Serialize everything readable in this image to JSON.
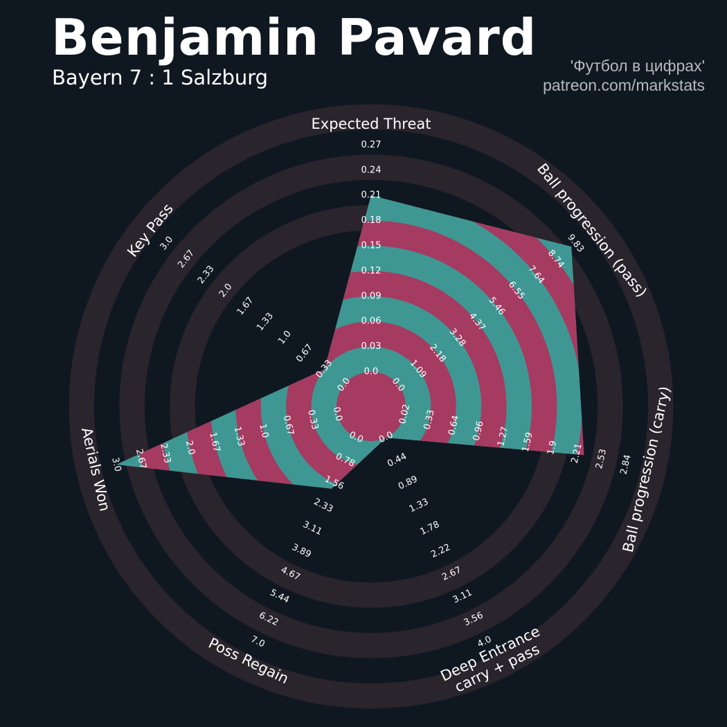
{
  "header": {
    "title": "Benjamin Pavard",
    "subtitle": "Bayern 7 : 1 Salzburg",
    "credit_line1": "'Футбол в цифрах'",
    "credit_line2": "patreon.com/markstats"
  },
  "colors": {
    "background": "#0f1821",
    "ring_band": "#2a242c",
    "fill_teal": "#3f9793",
    "fill_magenta": "#a53b61",
    "text": "#ffffff",
    "credit_text": "#b7b9bb"
  },
  "chart_data": {
    "type": "radar",
    "title": "Benjamin Pavard",
    "subtitle": "Bayern 7 : 1 Salzburg",
    "params": [
      {
        "label_lines": [
          "Expected Threat"
        ],
        "ticks": [
          "0.0",
          "0.03",
          "0.06",
          "0.09",
          "0.12",
          "0.15",
          "0.18",
          "0.21",
          "0.24",
          "0.27"
        ],
        "max": 0.27,
        "value": 0.21
      },
      {
        "label_lines": [
          "Ball progression (pass)"
        ],
        "ticks": [
          "0.0",
          "1.09",
          "2.18",
          "3.28",
          "4.37",
          "5.46",
          "6.55",
          "7.64",
          "8.74",
          "9.83"
        ],
        "max": 9.83,
        "value": 9.6
      },
      {
        "label_lines": [
          "Ball progression (carry)"
        ],
        "ticks": [
          "0.02",
          "0.33",
          "0.64",
          "0.96",
          "1.27",
          "1.59",
          "1.9",
          "2.21",
          "2.53",
          "2.84"
        ],
        "max": 2.84,
        "value": 2.3
      },
      {
        "label_lines": [
          "Deep Entrance",
          "carry + pass"
        ],
        "ticks": [
          "0.0",
          "0.44",
          "0.89",
          "1.33",
          "1.78",
          "2.22",
          "2.67",
          "3.11",
          "3.56",
          "4.0"
        ],
        "max": 4.0,
        "value": 0.0
      },
      {
        "label_lines": [
          "Poss Regain"
        ],
        "ticks": [
          "0.0",
          "0.78",
          "1.56",
          "2.33",
          "3.11",
          "3.89",
          "4.67",
          "5.44",
          "6.22",
          "7.0"
        ],
        "max": 7.0,
        "value": 1.75
      },
      {
        "label_lines": [
          "Aerials Won"
        ],
        "ticks": [
          "0.0",
          "0.33",
          "0.67",
          "1.0",
          "1.33",
          "1.67",
          "2.0",
          "2.33",
          "2.67",
          "3.0"
        ],
        "max": 3.0,
        "value": 3.0
      },
      {
        "label_lines": [
          "Key Pass"
        ],
        "ticks": [
          "0.0",
          "0.33",
          "0.67",
          "1.0",
          "1.33",
          "1.67",
          "2.0",
          "2.33",
          "2.67",
          "3.0"
        ],
        "max": 3.0,
        "value": 0.33
      }
    ]
  }
}
